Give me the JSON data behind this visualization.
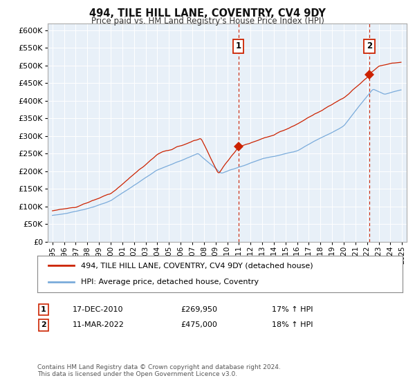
{
  "title": "494, TILE HILL LANE, COVENTRY, CV4 9DY",
  "subtitle": "Price paid vs. HM Land Registry's House Price Index (HPI)",
  "bg_color": "#ffffff",
  "plot_bg_color": "#e8f0f8",
  "grid_color": "#ffffff",
  "hpi_line_color": "#7aabdb",
  "price_line_color": "#cc2200",
  "sale1_date_num": 2010.96,
  "sale1_price": 269950,
  "sale1_label": "1",
  "sale2_date_num": 2022.19,
  "sale2_price": 475000,
  "sale2_label": "2",
  "legend_line1": "494, TILE HILL LANE, COVENTRY, CV4 9DY (detached house)",
  "legend_line2": "HPI: Average price, detached house, Coventry",
  "ann1_date": "17-DEC-2010",
  "ann1_price": "£269,950",
  "ann1_hpi": "17% ↑ HPI",
  "ann2_date": "11-MAR-2022",
  "ann2_price": "£475,000",
  "ann2_hpi": "18% ↑ HPI",
  "footer": "Contains HM Land Registry data © Crown copyright and database right 2024.\nThis data is licensed under the Open Government Licence v3.0.",
  "ylim_min": 0,
  "ylim_max": 620000,
  "ytick_step": 50000,
  "xmin": 1994.6,
  "xmax": 2025.4
}
